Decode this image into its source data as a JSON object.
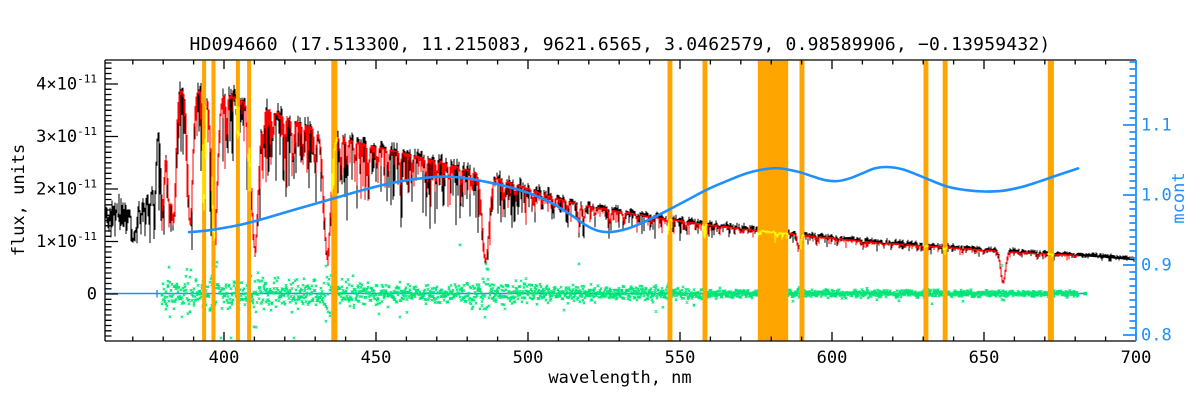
{
  "chart_data": {
    "type": "line",
    "title": "HD094660  (17.513300, 11.215083, 9621.6565, 3.0462579, 0.98589906, −0.13959432)",
    "object_id": "HD094660",
    "title_values": [
      17.5133,
      11.215083,
      9621.6565,
      3.0462579,
      0.98589906,
      -0.13959432
    ],
    "xlabel": "wavelength, nm",
    "ylabel_left": "flux, units",
    "ylabel_right": "mcont",
    "x_range_nm": [
      360.9,
      700
    ],
    "y_left_range_1e11": [
      -0.9,
      4.46
    ],
    "y_right_range": [
      0.79,
      1.19
    ],
    "x_ticks": [
      {
        "nm": 400,
        "label": "400"
      },
      {
        "nm": 450,
        "label": "450"
      },
      {
        "nm": 500,
        "label": "500"
      },
      {
        "nm": 550,
        "label": "550"
      },
      {
        "nm": 600,
        "label": "600"
      },
      {
        "nm": 650,
        "label": "650"
      },
      {
        "nm": 700,
        "label": "700"
      }
    ],
    "x_minor_step_nm": 10,
    "y_left_ticks": [
      {
        "v": 0,
        "base": "0",
        "exp": ""
      },
      {
        "v": 1,
        "base": "1×10",
        "exp": "-11"
      },
      {
        "v": 2,
        "base": "2×10",
        "exp": "-11"
      },
      {
        "v": 3,
        "base": "3×10",
        "exp": "-11"
      },
      {
        "v": 4,
        "base": "4×10",
        "exp": "-11"
      }
    ],
    "y_left_minor_step_1e11": 0.1,
    "y_right_ticks": [
      {
        "v": 0.8,
        "label": "0.8"
      },
      {
        "v": 0.9,
        "label": "0.9"
      },
      {
        "v": 1.0,
        "label": "1.0"
      },
      {
        "v": 1.1,
        "label": "1.1"
      }
    ],
    "y_right_minor_step": 0.01,
    "colors": {
      "observed": "#000000",
      "model_fit": "#FF0000",
      "masked_model": "#FFFF00",
      "residual": "#00E676",
      "continuum": "#1E90FF",
      "mask_band": "#FFA500",
      "frame": "#000000",
      "right_axis": "#1E90FF",
      "background": "#FFFFFF"
    },
    "series": [
      {
        "name": "observed-spectrum",
        "color": "#000000",
        "nm_start": 360.9,
        "nm_end": 699.0
      },
      {
        "name": "model-fit",
        "color": "#FF0000",
        "nm_start": 379.8,
        "nm_end": 681.0
      },
      {
        "name": "masked-model",
        "color": "#FFFF00",
        "note": "model drawn in yellow inside masked bands"
      },
      {
        "name": "residual",
        "color": "#00E676",
        "nm_start": 379.8,
        "nm_end": 681.0,
        "zero_level_1e11": 0
      },
      {
        "name": "mcont-continuum",
        "color": "#1E90FF",
        "axis": "right"
      }
    ],
    "masked_bands_nm": [
      [
        392.8,
        394.1
      ],
      [
        395.9,
        397.2
      ],
      [
        403.9,
        405.2
      ],
      [
        407.6,
        408.9
      ],
      [
        435.3,
        437.3
      ],
      [
        545.9,
        547.5
      ],
      [
        557.4,
        559.0
      ],
      [
        575.6,
        585.6
      ],
      [
        589.3,
        590.9
      ],
      [
        630.1,
        631.7
      ],
      [
        636.4,
        638.0
      ],
      [
        671.0,
        673.0
      ]
    ],
    "continuum_1e11": [
      [
        360.9,
        1.5
      ],
      [
        364,
        1.5
      ],
      [
        368,
        1.52
      ],
      [
        369.5,
        1.75
      ],
      [
        371,
        2.1
      ],
      [
        372.5,
        2.55
      ],
      [
        374,
        2.95
      ],
      [
        376,
        3.3
      ],
      [
        378,
        3.55
      ],
      [
        380,
        3.72
      ],
      [
        383,
        3.82
      ],
      [
        386,
        3.88
      ],
      [
        390,
        3.88
      ],
      [
        394,
        3.86
      ],
      [
        398,
        3.82
      ],
      [
        402,
        3.76
      ],
      [
        406,
        3.68
      ],
      [
        410,
        3.6
      ],
      [
        415,
        3.48
      ],
      [
        420,
        3.36
      ],
      [
        425,
        3.25
      ],
      [
        430,
        3.14
      ],
      [
        435,
        3.04
      ],
      [
        440,
        2.95
      ],
      [
        445,
        2.87
      ],
      [
        450,
        2.8
      ],
      [
        455,
        2.74
      ],
      [
        460,
        2.67
      ],
      [
        465,
        2.6
      ],
      [
        470,
        2.52
      ],
      [
        475,
        2.44
      ],
      [
        480,
        2.36
      ],
      [
        485,
        2.28
      ],
      [
        490,
        2.2
      ],
      [
        495,
        2.1
      ],
      [
        500,
        2.0
      ],
      [
        505,
        1.9
      ],
      [
        510,
        1.81
      ],
      [
        515,
        1.73
      ],
      [
        520,
        1.67
      ],
      [
        525,
        1.62
      ],
      [
        530,
        1.57
      ],
      [
        535,
        1.52
      ],
      [
        540,
        1.47
      ],
      [
        545,
        1.43
      ],
      [
        550,
        1.39
      ],
      [
        555,
        1.35
      ],
      [
        560,
        1.31
      ],
      [
        565,
        1.28
      ],
      [
        570,
        1.24
      ],
      [
        575,
        1.21
      ],
      [
        580,
        1.18
      ],
      [
        585,
        1.15
      ],
      [
        590,
        1.12
      ],
      [
        595,
        1.09
      ],
      [
        600,
        1.06
      ],
      [
        605,
        1.03
      ],
      [
        610,
        1.0
      ],
      [
        615,
        0.975
      ],
      [
        620,
        0.955
      ],
      [
        625,
        0.935
      ],
      [
        630,
        0.915
      ],
      [
        635,
        0.895
      ],
      [
        640,
        0.875
      ],
      [
        645,
        0.855
      ],
      [
        650,
        0.835
      ],
      [
        655,
        0.815
      ],
      [
        660,
        0.795
      ],
      [
        665,
        0.78
      ],
      [
        670,
        0.765
      ],
      [
        675,
        0.75
      ],
      [
        680,
        0.735
      ],
      [
        685,
        0.72
      ],
      [
        690,
        0.7
      ],
      [
        695,
        0.675
      ],
      [
        700,
        0.65
      ]
    ],
    "absorption_lines": [
      [
        370.0,
        0.45,
        0.7
      ],
      [
        371.2,
        0.4,
        0.7
      ],
      [
        372.6,
        0.42,
        0.7
      ],
      [
        374.0,
        0.45,
        0.8
      ],
      [
        375.5,
        0.48,
        0.8
      ],
      [
        377.1,
        0.52,
        0.9
      ],
      [
        379.8,
        0.56,
        1.0
      ],
      [
        381.9,
        0.5,
        0.9
      ],
      [
        383.5,
        0.62,
        1.0
      ],
      [
        388.9,
        0.66,
        1.2
      ],
      [
        393.4,
        0.58,
        0.55
      ],
      [
        396.9,
        0.72,
        1.4
      ],
      [
        400.9,
        0.18,
        0.4
      ],
      [
        404.6,
        0.2,
        0.4
      ],
      [
        407.8,
        0.22,
        0.4
      ],
      [
        410.2,
        0.76,
        1.6
      ],
      [
        413.0,
        0.15,
        0.4
      ],
      [
        416.0,
        0.14,
        0.4
      ],
      [
        420.0,
        0.14,
        0.4
      ],
      [
        422.7,
        0.22,
        0.5
      ],
      [
        426.0,
        0.15,
        0.4
      ],
      [
        430.0,
        0.2,
        0.5
      ],
      [
        434.0,
        0.76,
        1.6
      ],
      [
        438.4,
        0.18,
        0.45
      ],
      [
        440.5,
        0.15,
        0.4
      ],
      [
        443.0,
        0.14,
        0.4
      ],
      [
        447.5,
        0.2,
        0.45
      ],
      [
        450.5,
        0.14,
        0.4
      ],
      [
        454.0,
        0.13,
        0.4
      ],
      [
        458.0,
        0.13,
        0.4
      ],
      [
        462.0,
        0.12,
        0.4
      ],
      [
        466.5,
        0.14,
        0.4
      ],
      [
        470.0,
        0.1,
        0.4
      ],
      [
        474.0,
        0.1,
        0.4
      ],
      [
        478.0,
        0.12,
        0.4
      ],
      [
        481.5,
        0.12,
        0.4
      ],
      [
        486.1,
        0.72,
        1.6
      ],
      [
        492.2,
        0.16,
        0.45
      ],
      [
        495.8,
        0.1,
        0.4
      ],
      [
        501.5,
        0.13,
        0.4
      ],
      [
        504.8,
        0.1,
        0.4
      ],
      [
        508.5,
        0.1,
        0.4
      ],
      [
        513.0,
        0.1,
        0.4
      ],
      [
        516.7,
        0.2,
        0.5
      ],
      [
        518.4,
        0.16,
        0.45
      ],
      [
        522.0,
        0.1,
        0.4
      ],
      [
        527.0,
        0.14,
        0.45
      ],
      [
        531.5,
        0.1,
        0.4
      ],
      [
        536.0,
        0.08,
        0.4
      ],
      [
        541.0,
        0.08,
        0.4
      ],
      [
        546.0,
        0.08,
        0.4
      ],
      [
        552.0,
        0.07,
        0.4
      ],
      [
        558.0,
        0.06,
        0.4
      ],
      [
        563.0,
        0.06,
        0.4
      ],
      [
        570.0,
        0.06,
        0.4
      ],
      [
        576.0,
        0.06,
        0.4
      ],
      [
        582.0,
        0.06,
        0.4
      ],
      [
        588.9,
        0.22,
        0.45
      ],
      [
        589.6,
        0.18,
        0.4
      ],
      [
        595.0,
        0.05,
        0.4
      ],
      [
        602.0,
        0.05,
        0.4
      ],
      [
        610.3,
        0.08,
        0.4
      ],
      [
        617.0,
        0.05,
        0.4
      ],
      [
        624.0,
        0.05,
        0.4
      ],
      [
        630.0,
        0.07,
        0.4
      ],
      [
        637.0,
        0.05,
        0.4
      ],
      [
        643.0,
        0.05,
        0.4
      ],
      [
        650.0,
        0.05,
        0.4
      ],
      [
        656.3,
        0.74,
        1.1
      ],
      [
        662.0,
        0.05,
        0.4
      ],
      [
        667.8,
        0.07,
        0.4
      ],
      [
        673.0,
        0.04,
        0.4
      ],
      [
        680.0,
        0.04,
        0.4
      ]
    ],
    "residual_sigma_1e11": [
      [
        380,
        0.26
      ],
      [
        388,
        0.33
      ],
      [
        396,
        0.34
      ],
      [
        404,
        0.32
      ],
      [
        412,
        0.3
      ],
      [
        420,
        0.28
      ],
      [
        430,
        0.3
      ],
      [
        436,
        0.32
      ],
      [
        444,
        0.24
      ],
      [
        452,
        0.22
      ],
      [
        460,
        0.21
      ],
      [
        470,
        0.2
      ],
      [
        480,
        0.24
      ],
      [
        488,
        0.27
      ],
      [
        496,
        0.23
      ],
      [
        505,
        0.2
      ],
      [
        515,
        0.18
      ],
      [
        525,
        0.16
      ],
      [
        535,
        0.15
      ],
      [
        545,
        0.14
      ],
      [
        555,
        0.12
      ],
      [
        565,
        0.11
      ],
      [
        575,
        0.1
      ],
      [
        585,
        0.095
      ],
      [
        595,
        0.09
      ],
      [
        605,
        0.085
      ],
      [
        615,
        0.08
      ],
      [
        625,
        0.078
      ],
      [
        635,
        0.075
      ],
      [
        645,
        0.072
      ],
      [
        655,
        0.07
      ],
      [
        665,
        0.068
      ],
      [
        675,
        0.065
      ],
      [
        681,
        0.065
      ]
    ],
    "mcont_curve": [
      [
        388.5,
        0.947
      ],
      [
        394,
        0.949
      ],
      [
        400,
        0.953
      ],
      [
        406,
        0.958
      ],
      [
        413,
        0.966
      ],
      [
        420,
        0.975
      ],
      [
        428,
        0.985
      ],
      [
        436,
        0.995
      ],
      [
        444,
        1.005
      ],
      [
        452,
        1.014
      ],
      [
        460,
        1.021
      ],
      [
        470,
        1.026
      ],
      [
        478,
        1.025
      ],
      [
        486,
        1.019
      ],
      [
        494,
        1.011
      ],
      [
        502,
        1.0
      ],
      [
        508,
        0.988
      ],
      [
        514,
        0.972
      ],
      [
        519,
        0.957
      ],
      [
        523,
        0.949
      ],
      [
        527,
        0.947
      ],
      [
        532,
        0.951
      ],
      [
        538,
        0.961
      ],
      [
        545,
        0.976
      ],
      [
        552,
        0.992
      ],
      [
        559,
        1.008
      ],
      [
        566,
        1.021
      ],
      [
        572,
        1.031
      ],
      [
        578,
        1.037
      ],
      [
        583,
        1.038
      ],
      [
        589,
        1.033
      ],
      [
        594,
        1.026
      ],
      [
        598,
        1.021
      ],
      [
        602,
        1.02
      ],
      [
        606,
        1.024
      ],
      [
        610,
        1.031
      ],
      [
        614,
        1.038
      ],
      [
        618,
        1.04
      ],
      [
        623,
        1.037
      ],
      [
        628,
        1.029
      ],
      [
        633,
        1.02
      ],
      [
        638,
        1.012
      ],
      [
        644,
        1.007
      ],
      [
        650,
        1.005
      ],
      [
        656,
        1.006
      ],
      [
        662,
        1.011
      ],
      [
        668,
        1.019
      ],
      [
        674,
        1.028
      ],
      [
        681,
        1.038
      ]
    ],
    "zero_line": {
      "flux_1e11": 0,
      "nm_start": 360.9,
      "nm_end": 683.5,
      "color": "#1E90FF"
    }
  }
}
